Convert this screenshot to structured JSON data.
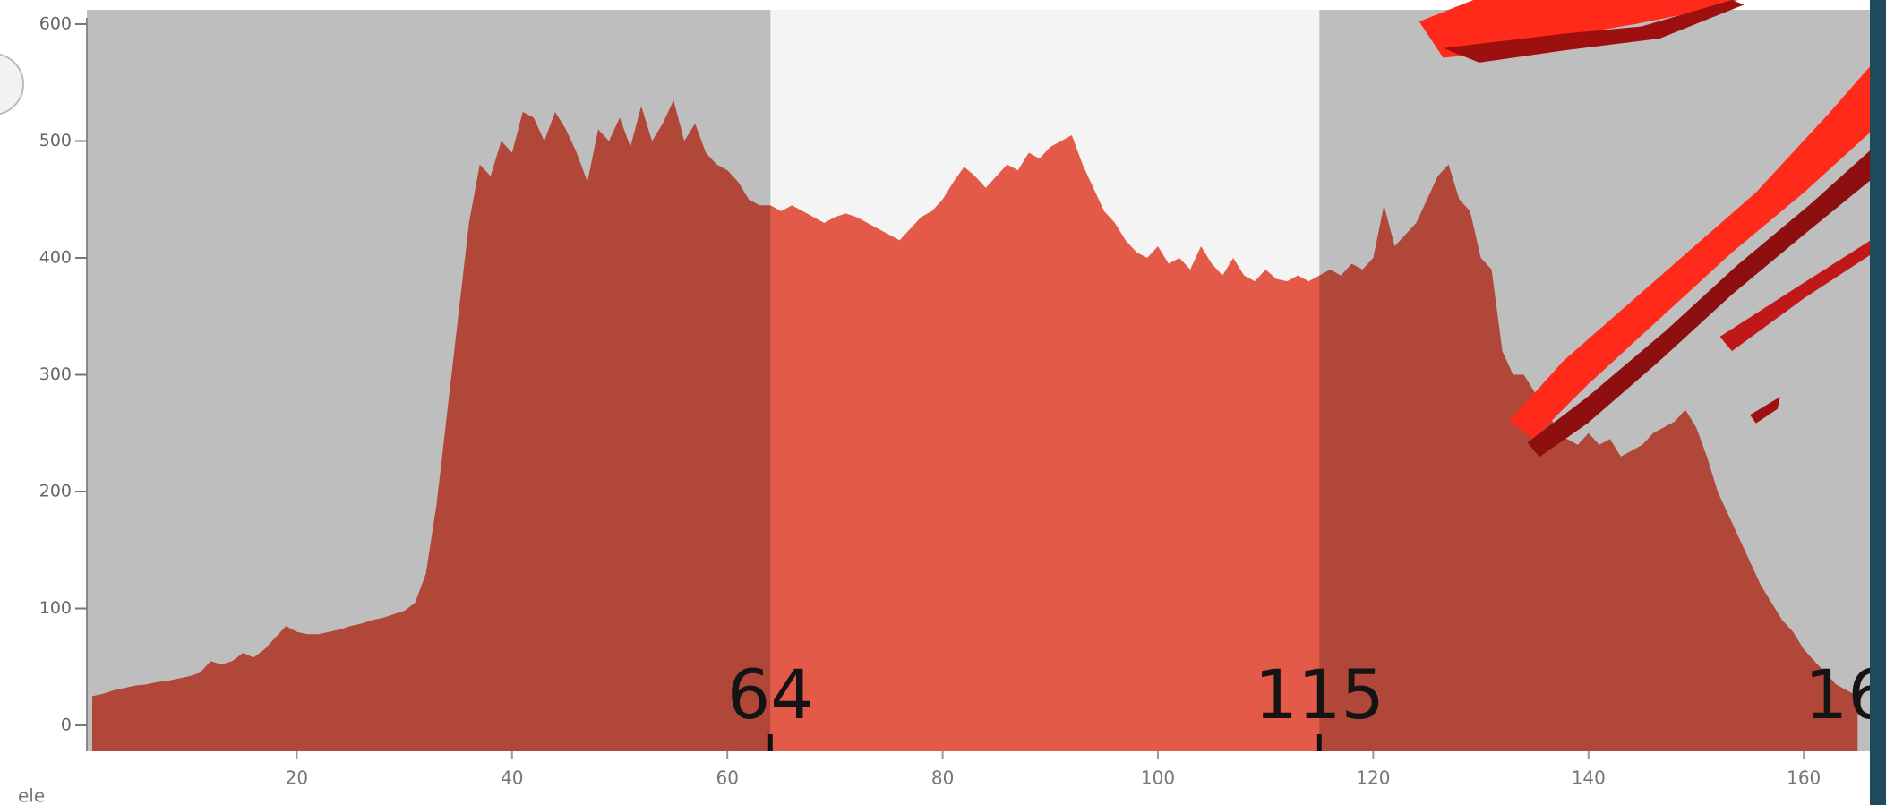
{
  "chart_data": {
    "type": "area",
    "x_label": "ele",
    "color": "#e35b48",
    "x": [
      1,
      2,
      3,
      4,
      5,
      6,
      7,
      8,
      9,
      10,
      11,
      12,
      13,
      14,
      15,
      16,
      17,
      18,
      19,
      20,
      21,
      22,
      23,
      24,
      25,
      26,
      27,
      28,
      29,
      30,
      31,
      32,
      33,
      34,
      35,
      36,
      37,
      38,
      39,
      40,
      41,
      42,
      43,
      44,
      45,
      46,
      47,
      48,
      49,
      50,
      51,
      52,
      53,
      54,
      55,
      56,
      57,
      58,
      59,
      60,
      61,
      62,
      63,
      64,
      65,
      66,
      67,
      68,
      69,
      70,
      71,
      72,
      73,
      74,
      75,
      76,
      77,
      78,
      79,
      80,
      81,
      82,
      83,
      84,
      85,
      86,
      87,
      88,
      89,
      90,
      91,
      92,
      93,
      94,
      95,
      96,
      97,
      98,
      99,
      100,
      101,
      102,
      103,
      104,
      105,
      106,
      107,
      108,
      109,
      110,
      111,
      112,
      113,
      114,
      115,
      116,
      117,
      118,
      119,
      120,
      121,
      122,
      123,
      124,
      125,
      126,
      127,
      128,
      129,
      130,
      131,
      132,
      133,
      134,
      135,
      136,
      137,
      138,
      139,
      140,
      141,
      142,
      143,
      144,
      145,
      146,
      147,
      148,
      149,
      150,
      151,
      152,
      153,
      154,
      155,
      156,
      157,
      158,
      159,
      160,
      161,
      162,
      163,
      164,
      165
    ],
    "values": [
      25,
      27,
      30,
      32,
      34,
      35,
      37,
      38,
      40,
      42,
      45,
      55,
      52,
      55,
      62,
      58,
      65,
      75,
      85,
      80,
      78,
      78,
      80,
      82,
      85,
      87,
      90,
      92,
      95,
      98,
      105,
      130,
      190,
      270,
      350,
      430,
      480,
      470,
      500,
      490,
      525,
      520,
      500,
      525,
      510,
      490,
      465,
      510,
      500,
      520,
      495,
      530,
      500,
      515,
      535,
      500,
      515,
      490,
      480,
      475,
      465,
      450,
      445,
      445,
      440,
      445,
      440,
      435,
      430,
      435,
      438,
      435,
      430,
      425,
      420,
      415,
      425,
      435,
      440,
      450,
      465,
      478,
      470,
      460,
      470,
      480,
      475,
      490,
      485,
      495,
      500,
      505,
      480,
      460,
      440,
      430,
      415,
      405,
      400,
      410,
      395,
      400,
      390,
      410,
      395,
      385,
      400,
      385,
      380,
      390,
      382,
      380,
      385,
      380,
      385,
      390,
      385,
      395,
      390,
      400,
      445,
      410,
      420,
      430,
      450,
      470,
      480,
      450,
      440,
      400,
      390,
      320,
      300,
      300,
      285,
      270,
      255,
      245,
      240,
      250,
      240,
      245,
      230,
      235,
      240,
      250,
      255,
      260,
      270,
      255,
      230,
      200,
      180,
      160,
      140,
      120,
      105,
      90,
      80,
      65,
      55,
      45,
      35,
      30,
      25
    ],
    "xlim": [
      0,
      166
    ],
    "ylim": [
      0,
      600
    ],
    "xticks": [
      20,
      40,
      60,
      80,
      100,
      120,
      140,
      160
    ],
    "yticks": [
      0,
      100,
      200,
      300,
      400,
      500,
      600
    ],
    "selection": [
      64,
      115
    ],
    "edge_label": "16"
  }
}
